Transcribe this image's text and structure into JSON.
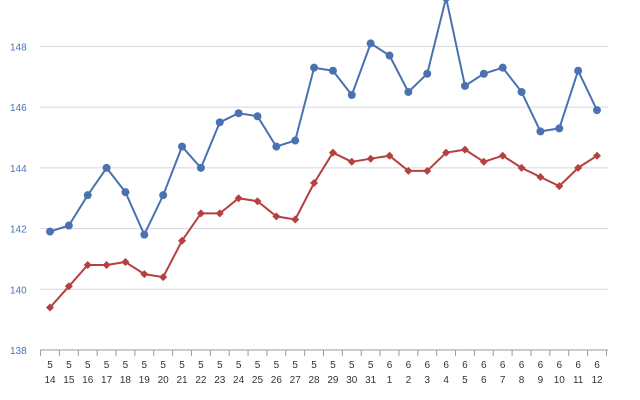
{
  "chart_data": {
    "type": "line",
    "title": "",
    "xlabel": "",
    "ylabel": "",
    "categories": [
      [
        "5",
        "14"
      ],
      [
        "5",
        "15"
      ],
      [
        "5",
        "16"
      ],
      [
        "5",
        "17"
      ],
      [
        "5",
        "18"
      ],
      [
        "5",
        "19"
      ],
      [
        "5",
        "20"
      ],
      [
        "5",
        "21"
      ],
      [
        "5",
        "22"
      ],
      [
        "5",
        "23"
      ],
      [
        "5",
        "24"
      ],
      [
        "5",
        "25"
      ],
      [
        "5",
        "26"
      ],
      [
        "5",
        "27"
      ],
      [
        "5",
        "28"
      ],
      [
        "5",
        "29"
      ],
      [
        "5",
        "30"
      ],
      [
        "5",
        "31"
      ],
      [
        "6",
        "1"
      ],
      [
        "6",
        "2"
      ],
      [
        "6",
        "3"
      ],
      [
        "6",
        "4"
      ],
      [
        "6",
        "5"
      ],
      [
        "6",
        "6"
      ],
      [
        "6",
        "7"
      ],
      [
        "6",
        "8"
      ],
      [
        "6",
        "9"
      ],
      [
        "6",
        "10"
      ],
      [
        "6",
        "11"
      ],
      [
        "6",
        "12"
      ]
    ],
    "ylim": [
      138,
      149.2
    ],
    "yticks": [
      "138",
      "140",
      "142",
      "144",
      "146",
      "148"
    ],
    "grid": true,
    "series": [
      {
        "color": "#4a72b0",
        "marker": "circle",
        "values": [
          141.9,
          142.1,
          143.1,
          144.0,
          143.2,
          141.8,
          143.1,
          144.7,
          144.0,
          145.5,
          145.8,
          145.7,
          144.7,
          144.9,
          147.3,
          147.2,
          146.4,
          148.1,
          147.7,
          146.5,
          147.1,
          149.6,
          146.7,
          147.1,
          147.3,
          146.5,
          145.2,
          145.3,
          147.2,
          145.9
        ]
      },
      {
        "color": "#b5403f",
        "marker": "diamond",
        "values": [
          139.4,
          140.1,
          140.8,
          140.8,
          140.9,
          140.5,
          140.4,
          141.6,
          142.5,
          142.5,
          143.0,
          142.9,
          142.4,
          142.3,
          143.5,
          144.5,
          144.2,
          144.3,
          144.4,
          143.9,
          143.9,
          144.5,
          144.6,
          144.2,
          144.4,
          144.0,
          143.7,
          143.4,
          144.0,
          144.4
        ]
      }
    ]
  }
}
